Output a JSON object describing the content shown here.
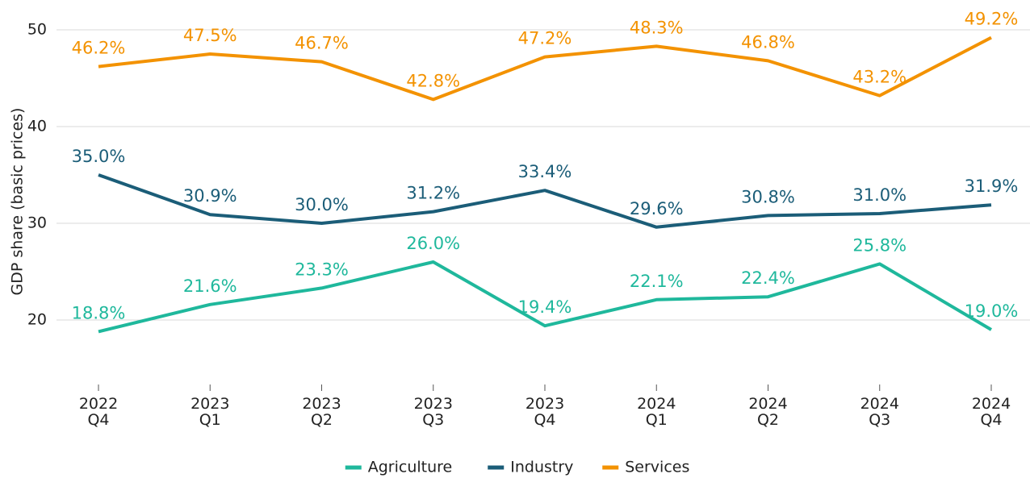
{
  "chart_data": {
    "type": "line",
    "y_label": "GDP share (basic prices)",
    "categories": [
      "2022 Q4",
      "2023 Q1",
      "2023 Q2",
      "2023 Q3",
      "2023 Q4",
      "2024 Q1",
      "2024 Q2",
      "2024 Q3",
      "2024 Q4"
    ],
    "series": [
      {
        "name": "Agriculture",
        "color": "#1fb89c",
        "values": [
          18.8,
          21.6,
          23.3,
          26.0,
          19.4,
          22.1,
          22.4,
          25.8,
          19.0
        ],
        "value_labels": [
          "18.8%",
          "21.6%",
          "23.3%",
          "26.0%",
          "19.4%",
          "22.1%",
          "22.4%",
          "25.8%",
          "19.0%"
        ]
      },
      {
        "name": "Industry",
        "color": "#1b5d78",
        "values": [
          35.0,
          30.9,
          30.0,
          31.2,
          33.4,
          29.6,
          30.8,
          31.0,
          31.9
        ],
        "value_labels": [
          "35.0%",
          "30.9%",
          "30.0%",
          "31.2%",
          "33.4%",
          "29.6%",
          "30.8%",
          "31.0%",
          "31.9%"
        ]
      },
      {
        "name": "Services",
        "color": "#f39200",
        "values": [
          46.2,
          47.5,
          46.7,
          42.8,
          47.2,
          48.3,
          46.8,
          43.2,
          49.2
        ],
        "value_labels": [
          "46.2%",
          "47.5%",
          "46.7%",
          "42.8%",
          "47.2%",
          "48.3%",
          "46.8%",
          "43.2%",
          "49.2%"
        ]
      }
    ],
    "ylim": [
      13,
      52
    ],
    "yticks": [
      20,
      30,
      40,
      50
    ],
    "grid": true,
    "legend": "bottom"
  }
}
